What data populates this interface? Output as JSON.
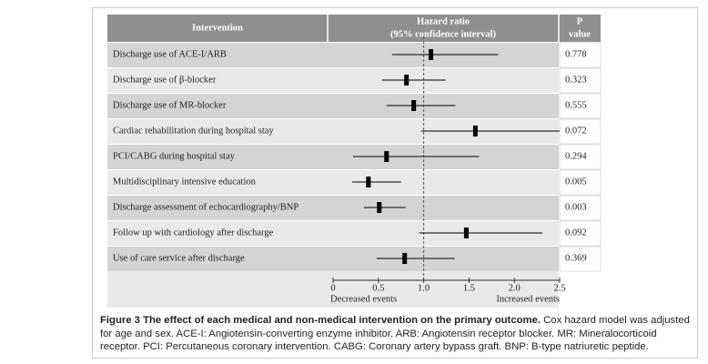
{
  "chart_data": {
    "type": "forest",
    "column_headers": {
      "intervention": "Intervention",
      "hr": "Hazard ratio",
      "ci": "(95% confidence interval)",
      "p1": "P",
      "p2": "value"
    },
    "categories": [
      "Discharge use of ACE-I/ARB",
      "Discharge use of β-blocker",
      "Discharge use of MR-blocker",
      "Cardiac rehabilitation during hospital stay",
      "PCI/CABG during hospital stay",
      "Multidisciplinary intensive education",
      "Discharge assessment of echocardiography/BNP",
      "Follow up with cardiology after discharge",
      "Use of care service after discharge"
    ],
    "values": [
      1.08,
      0.81,
      0.89,
      1.57,
      0.59,
      0.39,
      0.51,
      1.47,
      0.79
    ],
    "lower": [
      0.65,
      0.54,
      0.59,
      0.97,
      0.22,
      0.21,
      0.34,
      0.95,
      0.48
    ],
    "upper": [
      1.82,
      1.24,
      1.35,
      2.5,
      1.61,
      0.75,
      0.8,
      2.31,
      1.34
    ],
    "p_values": [
      0.778,
      0.323,
      0.555,
      0.072,
      0.294,
      0.005,
      0.003,
      0.092,
      0.369
    ],
    "reference": 1,
    "xlim": [
      0,
      2.5
    ],
    "xticks": [
      0,
      0.5,
      {
        "value": 1,
        "label": "1.0"
      },
      1.5,
      {
        "value": 2,
        "label": "2.0"
      },
      2.5
    ],
    "xlabel_left": "Decreased events",
    "xlabel_right": "Increased events",
    "color": "#000000",
    "caption_title": "Figure 3 The effect of each medical and non-medical intervention on the primary outcome.",
    "caption_text": " Cox hazard model was adjusted for age and sex. ACE-I: Angiotensin-converting enzyme inhibitor. ARB: Angiotensin receptor blocker. MR: Mineralocorticoid receptor. PCI: Percutaneous coronary intervention. CABG: Coronary artery bypass graft. BNP: B-type natriuretic peptide."
  }
}
